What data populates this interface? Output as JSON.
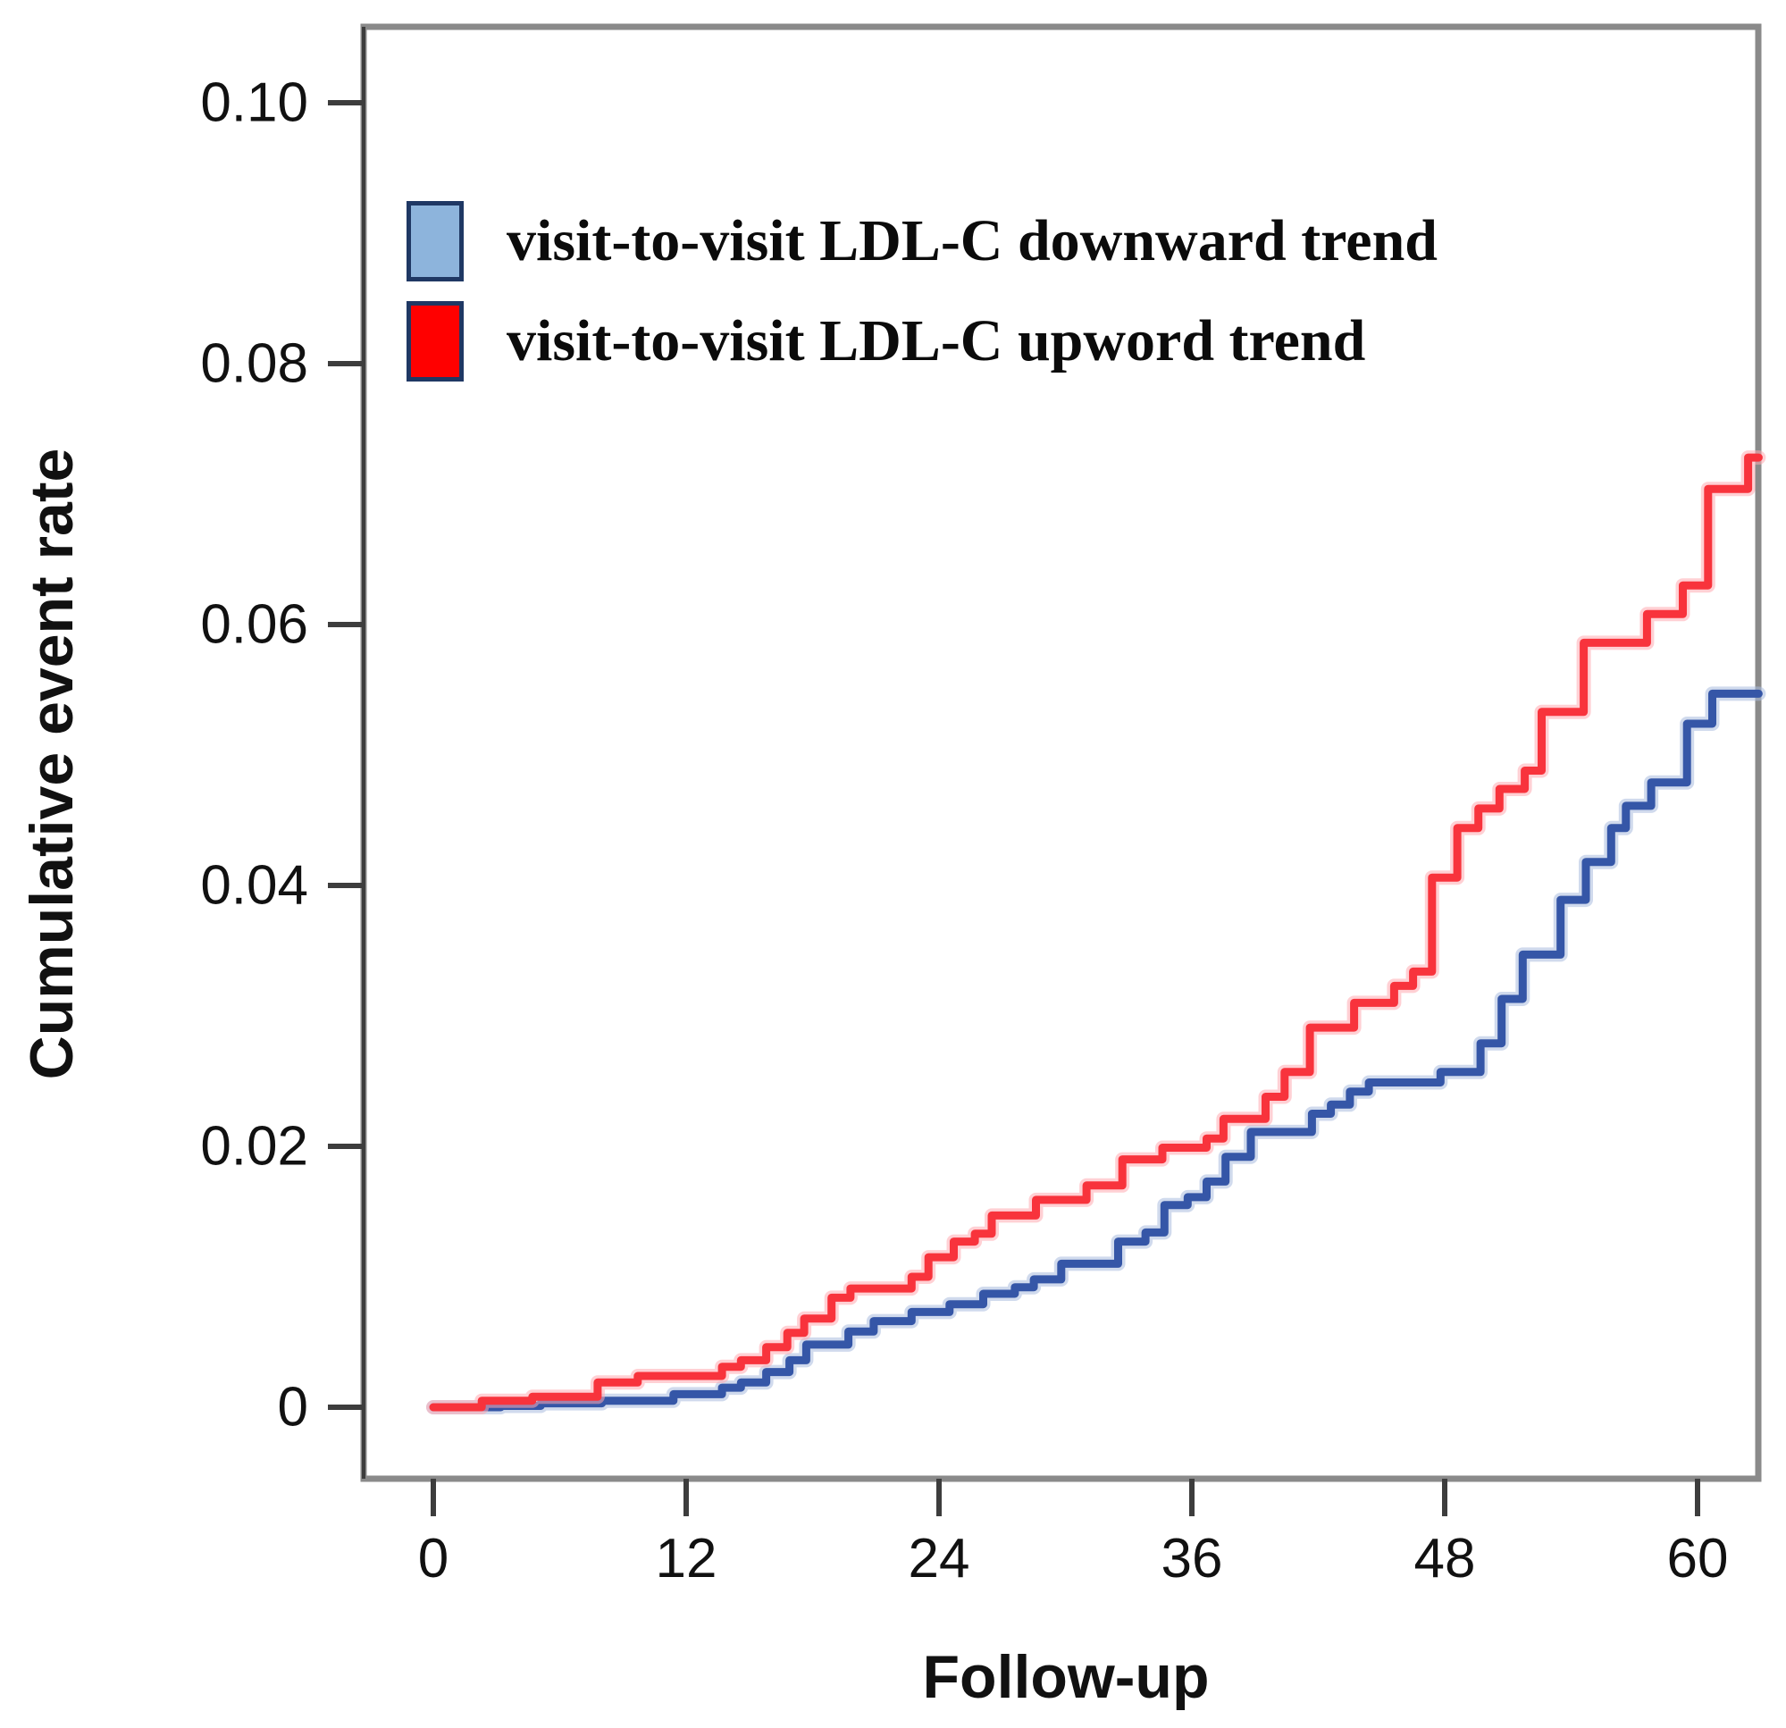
{
  "figure": {
    "x_axis_title": "Follow-up",
    "y_axis_title": "Cumulative event rate"
  },
  "legend": {
    "items": [
      {
        "label": "visit-to-visit LDL-C downward trend",
        "swatch_fill": "#8db4dc",
        "swatch_border": "#1f3864"
      },
      {
        "label": "visit-to-visit LDL-C upword trend",
        "swatch_fill": "#ff0000",
        "swatch_border": "#1f3864"
      }
    ]
  },
  "chart_data": {
    "type": "line",
    "subtype": "step-post",
    "title": "",
    "xlabel": "Follow-up",
    "ylabel": "Cumulative event rate",
    "xlim": [
      0,
      62.9
    ],
    "ylim": [
      0,
      0.1
    ],
    "x_ticks": [
      0,
      12,
      24,
      36,
      48,
      60
    ],
    "x_tick_labels": [
      "0",
      "12",
      "24",
      "36",
      "48",
      "60"
    ],
    "y_ticks": [
      0,
      0.02,
      0.04,
      0.06,
      0.08,
      0.1
    ],
    "y_tick_labels": [
      "0",
      "0.02",
      "0.04",
      "0.06",
      "0.08",
      "0.10"
    ],
    "grid": false,
    "legend_position": "top-left-inside",
    "x_end": 62.9,
    "series": [
      {
        "name": "visit-to-visit LDL-C downward trend",
        "color": "#3556a7",
        "halo": "#aabcdf",
        "points": [
          [
            0,
            0
          ],
          [
            3.2,
            0.0001
          ],
          [
            5.1,
            0.0003
          ],
          [
            8,
            0.0005
          ],
          [
            11.4,
            0.001
          ],
          [
            13.7,
            0.0015
          ],
          [
            14.6,
            0.0019
          ],
          [
            15.8,
            0.0027
          ],
          [
            16.9,
            0.0036
          ],
          [
            17.7,
            0.0048
          ],
          [
            19.7,
            0.0058
          ],
          [
            20.9,
            0.0066
          ],
          [
            22.7,
            0.0073
          ],
          [
            24.5,
            0.0079
          ],
          [
            26.1,
            0.0087
          ],
          [
            27.6,
            0.0092
          ],
          [
            28.5,
            0.0098
          ],
          [
            29.8,
            0.011
          ],
          [
            32.5,
            0.0127
          ],
          [
            33.8,
            0.0134
          ],
          [
            34.7,
            0.0155
          ],
          [
            35.8,
            0.0161
          ],
          [
            36.7,
            0.0173
          ],
          [
            37.6,
            0.0192
          ],
          [
            38.8,
            0.0211
          ],
          [
            41.7,
            0.0225
          ],
          [
            42.6,
            0.0232
          ],
          [
            43.5,
            0.0242
          ],
          [
            44.4,
            0.0249
          ],
          [
            47.8,
            0.0257
          ],
          [
            49.7,
            0.0279
          ],
          [
            50.7,
            0.0313
          ],
          [
            51.7,
            0.0347
          ],
          [
            53.5,
            0.0389
          ],
          [
            54.7,
            0.0418
          ],
          [
            55.9,
            0.0444
          ],
          [
            56.6,
            0.0461
          ],
          [
            57.8,
            0.0479
          ],
          [
            59.5,
            0.0524
          ],
          [
            60.7,
            0.0547
          ]
        ]
      },
      {
        "name": "visit-to-visit LDL-C upword trend",
        "color": "#f8333c",
        "halo": "#ffaab1",
        "points": [
          [
            0,
            0
          ],
          [
            2.3,
            0.0005
          ],
          [
            4.7,
            0.0008
          ],
          [
            7.8,
            0.0019
          ],
          [
            9.7,
            0.0024
          ],
          [
            13.7,
            0.0031
          ],
          [
            14.6,
            0.0036
          ],
          [
            15.8,
            0.0046
          ],
          [
            16.8,
            0.0057
          ],
          [
            17.6,
            0.0068
          ],
          [
            18.9,
            0.0084
          ],
          [
            19.8,
            0.0091
          ],
          [
            22.7,
            0.01
          ],
          [
            23.5,
            0.0115
          ],
          [
            24.7,
            0.0127
          ],
          [
            25.7,
            0.0133
          ],
          [
            26.5,
            0.0147
          ],
          [
            28.6,
            0.0159
          ],
          [
            31,
            0.017
          ],
          [
            32.7,
            0.019
          ],
          [
            34.6,
            0.0199
          ],
          [
            36.7,
            0.0206
          ],
          [
            37.5,
            0.0221
          ],
          [
            39.5,
            0.0238
          ],
          [
            40.4,
            0.0257
          ],
          [
            41.6,
            0.0291
          ],
          [
            43.7,
            0.031
          ],
          [
            45.6,
            0.0323
          ],
          [
            46.5,
            0.0334
          ],
          [
            47.4,
            0.0406
          ],
          [
            48.6,
            0.0444
          ],
          [
            49.6,
            0.0459
          ],
          [
            50.6,
            0.0474
          ],
          [
            51.8,
            0.0488
          ],
          [
            52.6,
            0.0533
          ],
          [
            54.6,
            0.0586
          ],
          [
            57.6,
            0.0608
          ],
          [
            59.3,
            0.063
          ],
          [
            60.5,
            0.0704
          ],
          [
            62.4,
            0.0728
          ]
        ]
      }
    ]
  }
}
